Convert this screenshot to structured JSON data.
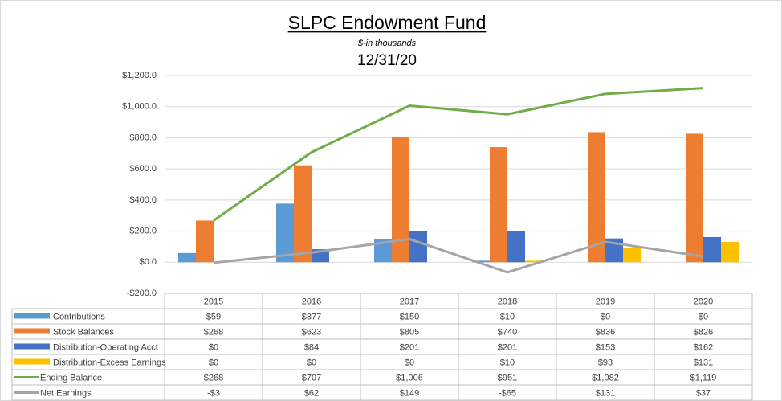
{
  "chart_data": {
    "type": "bar",
    "title": "SLPC Endowment Fund",
    "subtitle": "$-in thousands",
    "date": "12/31/20",
    "categories": [
      "2015",
      "2016",
      "2017",
      "2018",
      "2019",
      "2020"
    ],
    "series": [
      {
        "name": "Contributions",
        "type": "bar",
        "color": "#5b9bd5",
        "values": [
          59,
          377,
          150,
          10,
          0,
          0
        ],
        "value_labels": [
          "$59",
          "$377",
          "$150",
          "$10",
          "$0",
          "$0"
        ]
      },
      {
        "name": "Stock Balances",
        "type": "bar",
        "color": "#ed7d31",
        "values": [
          268,
          623,
          805,
          740,
          836,
          826
        ],
        "value_labels": [
          "$268",
          "$623",
          "$805",
          "$740",
          "$836",
          "$826"
        ]
      },
      {
        "name": "Distribution-Operating Acct",
        "type": "bar",
        "color": "#4472c4",
        "values": [
          0,
          84,
          201,
          201,
          153,
          162
        ],
        "value_labels": [
          "$0",
          "$84",
          "$201",
          "$201",
          "$153",
          "$162"
        ]
      },
      {
        "name": "Distribution-Excess Earnings",
        "type": "bar",
        "color": "#ffc000",
        "values": [
          0,
          0,
          0,
          10,
          93,
          131
        ],
        "value_labels": [
          "$0",
          "$0",
          "$0",
          "$10",
          "$93",
          "$131"
        ]
      },
      {
        "name": "Ending Balance",
        "type": "line",
        "color": "#70ad47",
        "values": [
          268,
          707,
          1006,
          951,
          1082,
          1119
        ],
        "value_labels": [
          "$268",
          "$707",
          "$1,006",
          "$951",
          "$1,082",
          "$1,119"
        ]
      },
      {
        "name": "Net Earnings",
        "type": "line",
        "color": "#a5a5a5",
        "values": [
          -3,
          62,
          149,
          -65,
          131,
          37
        ],
        "value_labels": [
          "-$3",
          "$62",
          "$149",
          "-$65",
          "$131",
          "$37"
        ]
      }
    ],
    "ylim": [
      -200,
      1200
    ],
    "yticks": [
      {
        "value": -200,
        "label": "-$200.0"
      },
      {
        "value": 0,
        "label": "$0.0"
      },
      {
        "value": 200,
        "label": "$200.0"
      },
      {
        "value": 400,
        "label": "$400.0"
      },
      {
        "value": 600,
        "label": "$600.0"
      },
      {
        "value": 800,
        "label": "$800.0"
      },
      {
        "value": 1000,
        "label": "$1,000.0"
      },
      {
        "value": 1200,
        "label": "$1,200.0"
      }
    ],
    "grid": true
  }
}
